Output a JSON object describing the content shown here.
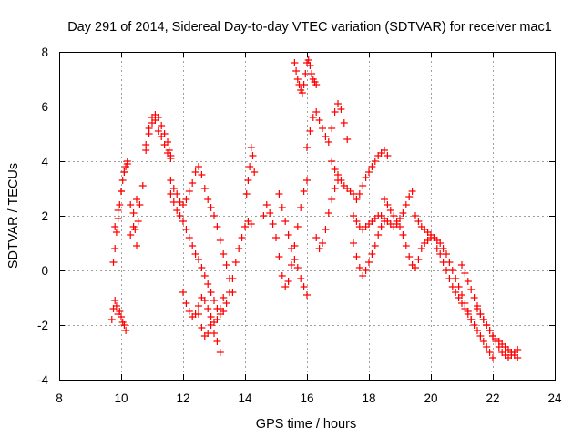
{
  "chart_data": {
    "type": "scatter",
    "title": "Day 291 of 2014, Sidereal Day-to-day VTEC variation (SDTVAR) for receiver mac1",
    "xlabel": "GPS time / hours",
    "ylabel": "SDTVAR / TECUs",
    "xlim": [
      8,
      24
    ],
    "ylim": [
      -4,
      8
    ],
    "x_ticks": [
      8,
      10,
      12,
      14,
      16,
      18,
      20,
      22,
      24
    ],
    "y_ticks": [
      -4,
      -2,
      0,
      2,
      4,
      6,
      8
    ],
    "x_tick_labels": [
      "8",
      "10",
      "12",
      "14",
      "16",
      "18",
      "20",
      "22",
      "24"
    ],
    "y_tick_labels": [
      "-4",
      "-2",
      "0",
      "2",
      "4",
      "6",
      "8"
    ],
    "grid": true,
    "marker": "+",
    "marker_color": "#ff0000",
    "series": [
      {
        "name": "SDTVAR",
        "color": "#ff0000",
        "x": [
          9.7,
          9.75,
          9.8,
          9.85,
          9.9,
          9.95,
          10.0,
          10.05,
          10.1,
          10.15,
          9.75,
          9.8,
          9.85,
          9.9,
          9.95,
          10.0,
          10.05,
          10.1,
          10.15,
          10.2,
          9.8,
          9.9,
          10.0,
          10.1,
          10.2,
          10.3,
          10.4,
          10.5,
          10.3,
          10.4,
          10.45,
          10.5,
          10.55,
          10.6,
          10.7,
          10.8,
          10.9,
          11.0,
          11.1,
          11.2,
          11.3,
          11.4,
          11.5,
          11.6,
          10.8,
          10.9,
          11.0,
          11.1,
          11.2,
          11.3,
          11.4,
          11.5,
          11.55,
          11.6,
          11.6,
          11.7,
          11.8,
          11.9,
          12.0,
          12.1,
          12.2,
          12.3,
          12.4,
          12.5,
          12.6,
          12.7,
          12.8,
          12.9,
          13.0,
          13.1,
          13.2,
          13.3,
          13.4,
          13.5,
          13.6,
          11.6,
          11.7,
          11.8,
          11.9,
          12.0,
          12.1,
          12.2,
          12.3,
          12.4,
          12.5,
          12.6,
          12.7,
          12.8,
          12.9,
          13.0,
          13.1,
          13.2,
          13.3,
          13.4,
          13.5,
          13.6,
          13.7,
          13.8,
          13.9,
          14.0,
          14.1,
          14.2,
          12.0,
          12.1,
          12.2,
          12.3,
          12.4,
          12.5,
          12.6,
          12.7,
          12.8,
          12.9,
          13.0,
          13.1,
          13.2,
          13.3,
          12.5,
          12.6,
          12.7,
          12.8,
          12.9,
          13.0,
          13.1,
          13.2,
          14.05,
          14.1,
          14.15,
          14.2,
          14.25,
          14.3,
          14.6,
          14.7,
          14.8,
          14.9,
          15.0,
          15.1,
          15.2,
          15.3,
          15.4,
          15.5,
          15.6,
          15.7,
          15.8,
          15.9,
          16.0,
          15.1,
          15.2,
          15.3,
          15.4,
          15.5,
          15.6,
          15.7,
          15.8,
          15.9,
          16.0,
          15.6,
          15.65,
          15.7,
          15.75,
          15.8,
          15.85,
          15.9,
          15.95,
          16.0,
          16.05,
          16.1,
          16.15,
          16.2,
          16.25,
          16.3,
          16.0,
          16.1,
          16.2,
          16.3,
          16.4,
          16.5,
          16.6,
          16.7,
          16.8,
          16.9,
          17.0,
          17.1,
          17.2,
          17.3,
          16.3,
          16.4,
          16.5,
          16.6,
          16.7,
          16.8,
          16.9,
          17.0,
          16.8,
          16.9,
          17.0,
          17.1,
          17.2,
          17.3,
          17.4,
          17.5,
          17.6,
          17.7,
          17.8,
          17.9,
          18.0,
          18.1,
          18.2,
          18.3,
          18.4,
          18.5,
          18.6,
          17.5,
          17.6,
          17.7,
          17.8,
          17.9,
          18.0,
          18.1,
          18.2,
          18.3,
          18.4,
          18.5,
          17.5,
          17.6,
          17.7,
          17.8,
          17.9,
          18.0,
          18.1,
          18.2,
          18.3,
          18.4,
          18.5,
          18.6,
          18.7,
          18.8,
          18.9,
          19.0,
          19.1,
          19.2,
          19.3,
          19.4,
          18.5,
          18.6,
          18.7,
          18.8,
          18.9,
          19.0,
          19.1,
          19.2,
          19.3,
          19.4,
          19.5,
          19.6,
          19.7,
          19.8,
          19.9,
          20.0,
          19.5,
          19.6,
          19.7,
          19.8,
          19.9,
          20.0,
          20.1,
          20.2,
          20.3,
          20.4,
          20.5,
          20.6,
          20.7,
          20.8,
          20.9,
          21.0,
          21.1,
          21.2,
          21.3,
          20.2,
          20.3,
          20.4,
          20.5,
          20.6,
          20.7,
          20.8,
          20.9,
          21.0,
          21.1,
          21.2,
          21.3,
          21.4,
          21.5,
          21.6,
          21.7,
          21.8,
          21.9,
          22.0,
          21.0,
          21.1,
          21.2,
          21.3,
          21.4,
          21.5,
          21.6,
          21.7,
          21.8,
          21.9,
          22.0,
          22.1,
          22.2,
          22.3,
          22.4,
          22.5,
          22.6,
          22.7,
          22.8,
          21.5,
          21.6,
          21.7,
          21.8,
          21.9,
          22.0,
          22.1,
          22.2,
          22.3,
          22.4,
          22.5,
          22.6,
          22.7,
          22.8
        ],
        "y": [
          -1.8,
          -1.4,
          -1.1,
          -1.3,
          -1.6,
          -1.5,
          -1.7,
          -1.9,
          -2.0,
          -2.2,
          0.3,
          0.8,
          1.4,
          1.9,
          2.4,
          2.9,
          3.3,
          3.6,
          3.8,
          3.9,
          1.6,
          2.2,
          2.9,
          3.6,
          4.0,
          2.4,
          1.6,
          0.9,
          1.3,
          2.1,
          1.5,
          2.6,
          1.8,
          2.4,
          3.1,
          4.6,
          5.2,
          5.6,
          5.5,
          5.1,
          4.9,
          4.6,
          4.3,
          4.1,
          4.4,
          5.0,
          5.4,
          5.7,
          5.6,
          5.3,
          5.0,
          4.7,
          4.4,
          4.2,
          3.3,
          3.0,
          2.8,
          2.5,
          2.4,
          2.6,
          2.9,
          3.2,
          3.6,
          3.8,
          3.5,
          3.0,
          2.6,
          2.3,
          2.0,
          1.6,
          1.1,
          0.6,
          0.2,
          -0.3,
          -0.8,
          2.8,
          2.5,
          2.2,
          2.0,
          1.8,
          1.5,
          1.2,
          0.9,
          0.6,
          0.4,
          0.1,
          -0.2,
          -0.5,
          -0.8,
          -1.1,
          -1.4,
          -1.6,
          -1.5,
          -1.2,
          -0.8,
          -0.3,
          0.3,
          0.8,
          1.2,
          1.6,
          1.8,
          1.7,
          -0.8,
          -1.2,
          -1.5,
          -1.7,
          -1.6,
          -1.3,
          -1.0,
          -1.1,
          -1.4,
          -1.7,
          -1.9,
          -1.8,
          -1.4,
          -1.0,
          -1.6,
          -2.1,
          -2.4,
          -2.3,
          -2.0,
          -2.3,
          -2.6,
          -3.0,
          2.8,
          3.3,
          3.8,
          4.5,
          4.2,
          3.6,
          2.0,
          2.4,
          2.1,
          1.7,
          1.2,
          0.5,
          -0.2,
          -0.6,
          -0.4,
          0.2,
          0.9,
          1.6,
          2.3,
          2.9,
          3.3,
          2.8,
          2.3,
          1.8,
          1.3,
          0.8,
          0.4,
          0.1,
          -0.3,
          -0.6,
          -0.9,
          7.6,
          7.3,
          7.0,
          6.8,
          6.6,
          6.5,
          6.8,
          7.2,
          7.6,
          7.7,
          7.5,
          7.2,
          7.0,
          6.9,
          6.8,
          4.5,
          5.1,
          5.6,
          5.8,
          5.5,
          5.2,
          4.9,
          4.7,
          5.2,
          5.8,
          6.1,
          5.9,
          5.4,
          4.8,
          1.2,
          0.8,
          1.0,
          1.5,
          2.1,
          2.6,
          3.0,
          3.3,
          4.0,
          3.7,
          3.5,
          3.3,
          3.1,
          3.0,
          2.9,
          2.8,
          2.6,
          2.8,
          3.1,
          3.4,
          3.6,
          3.8,
          4.0,
          4.2,
          4.3,
          4.4,
          4.2,
          1.0,
          0.5,
          0.1,
          -0.2,
          0.0,
          0.3,
          0.6,
          0.9,
          1.3,
          1.6,
          1.8,
          2.0,
          1.8,
          1.6,
          1.5,
          1.6,
          1.7,
          1.8,
          1.9,
          2.0,
          2.0,
          1.9,
          1.8,
          1.7,
          1.6,
          1.7,
          1.9,
          2.1,
          2.4,
          2.7,
          2.9,
          2.6,
          2.4,
          2.2,
          2.0,
          1.8,
          1.6,
          1.3,
          0.9,
          0.5,
          0.2,
          0.1,
          0.4,
          0.8,
          1.0,
          1.1,
          1.2,
          2.0,
          1.8,
          1.6,
          1.5,
          1.4,
          1.3,
          1.2,
          1.1,
          1.0,
          0.8,
          0.6,
          0.3,
          0.0,
          -0.3,
          -0.6,
          -0.9,
          -1.2,
          -1.5,
          -1.8,
          0.8,
          0.6,
          0.3,
          0.0,
          -0.3,
          -0.6,
          -0.8,
          -1.0,
          -1.2,
          -1.4,
          -1.6,
          -1.8,
          -2.0,
          -2.2,
          -2.4,
          -2.6,
          -2.8,
          -3.0,
          -3.2,
          0.2,
          -0.1,
          -0.4,
          -0.7,
          -1.0,
          -1.3,
          -1.6,
          -1.8,
          -2.0,
          -2.2,
          -2.4,
          -2.6,
          -2.8,
          -3.0,
          -3.1,
          -3.2,
          -3.1,
          -3.0,
          -2.9,
          -1.4,
          -1.6,
          -1.8,
          -2.0,
          -2.2,
          -2.4,
          -2.5,
          -2.6,
          -2.7,
          -2.8,
          -2.9,
          -3.0,
          -3.1,
          -3.2
        ]
      }
    ]
  }
}
